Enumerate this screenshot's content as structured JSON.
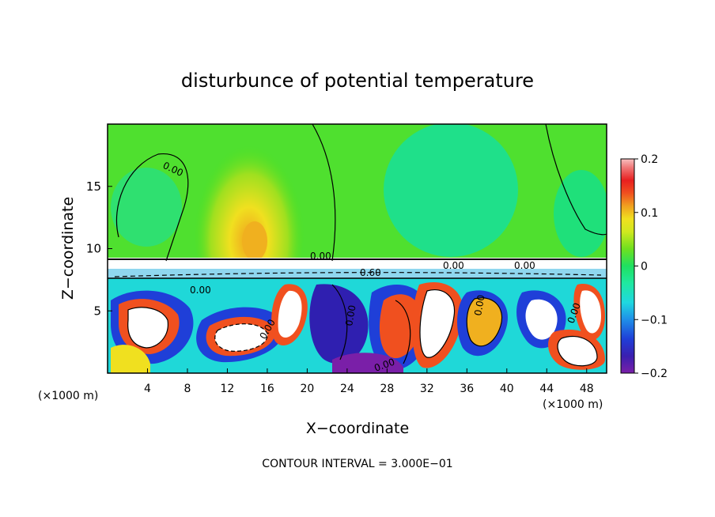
{
  "chart_data": {
    "type": "heatmap",
    "title": "disturbunce of potential temperature",
    "xlabel": "X−coordinate",
    "ylabel": "Z−coordinate",
    "x_unit_left": "(×1000 m)",
    "x_unit_right": "(×1000 m)",
    "xlim": [
      0,
      50
    ],
    "ylim": [
      0,
      20
    ],
    "x_ticks": [
      4,
      8,
      12,
      16,
      20,
      24,
      28,
      32,
      36,
      40,
      44,
      48
    ],
    "y_ticks": [
      5,
      10,
      15
    ],
    "colorbar": {
      "range": [
        -0.2,
        0.2
      ],
      "ticks": [
        "0.2",
        "0.1",
        "0",
        "−0.1",
        "−0.2"
      ],
      "colors": [
        "#7a1fa8",
        "#3a1fb0",
        "#1f3fd8",
        "#1f7fe8",
        "#1fb0e8",
        "#1fd8d8",
        "#1fe8a8",
        "#1fe070",
        "#3fe01f",
        "#8fe01f",
        "#c8e81f",
        "#f0f01f",
        "#f0c81f",
        "#f0901f",
        "#f0501f",
        "#e81f1f",
        "#f07878",
        "#f8b8b8"
      ]
    },
    "contour_interval": "CONTOUR INTERVAL = 3.000E−01",
    "contour_labels": [
      "0.00",
      "0.00",
      "0.00",
      "0.60",
      "0.00",
      "0.00",
      "0.00",
      "0.00",
      "0.00",
      "0.00",
      "0.00"
    ]
  }
}
